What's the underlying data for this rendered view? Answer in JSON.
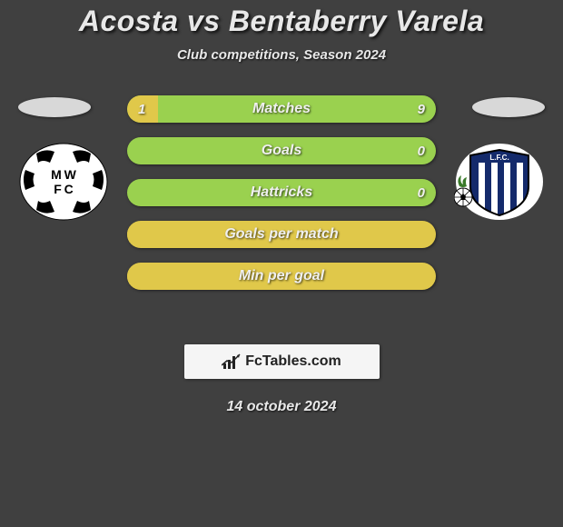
{
  "title": "Acosta vs Bentaberry Varela",
  "subtitle": "Club competitions, Season 2024",
  "date": "14 october 2024",
  "branding": "FcTables.com",
  "logo_left": {
    "circle_fill": "#ffffff",
    "text_lines": [
      "M W",
      "F C"
    ],
    "text_color": "#000000"
  },
  "logo_right": {
    "stripe_colors": [
      "#142a6b",
      "#ffffff"
    ],
    "text": "L.F.C.",
    "text_color": "#ffffff"
  },
  "bars": [
    {
      "label": "Matches",
      "left_val": "1",
      "right_val": "9",
      "left_pct": 10,
      "right_pct": 7,
      "left_fill_width_pct": 10,
      "right_fill_width_pct": 0
    },
    {
      "label": "Goals",
      "left_val": "",
      "right_val": "0",
      "left_fill_width_pct": 0,
      "right_fill_width_pct": 0
    },
    {
      "label": "Hattricks",
      "left_val": "",
      "right_val": "0",
      "left_fill_width_pct": 0,
      "right_fill_width_pct": 0
    },
    {
      "label": "Goals per match",
      "left_val": "",
      "right_val": "",
      "left_fill_width_pct": 4,
      "right_fill_width_pct": 4,
      "show_full_yellow": true
    },
    {
      "label": "Min per goal",
      "left_val": "",
      "right_val": "",
      "left_fill_width_pct": 4,
      "right_fill_width_pct": 4,
      "show_full_yellow": true
    }
  ],
  "colors": {
    "background": "#404040",
    "bar_green": "#9ad14f",
    "bar_yellow": "#e0c84a",
    "text_light": "#e8e8e8",
    "flag_bg": "#d8d8d8"
  },
  "typography": {
    "title_fontsize": 32,
    "subtitle_fontsize": 15,
    "bar_label_fontsize": 16,
    "bar_value_fontsize": 15,
    "date_fontsize": 16
  }
}
